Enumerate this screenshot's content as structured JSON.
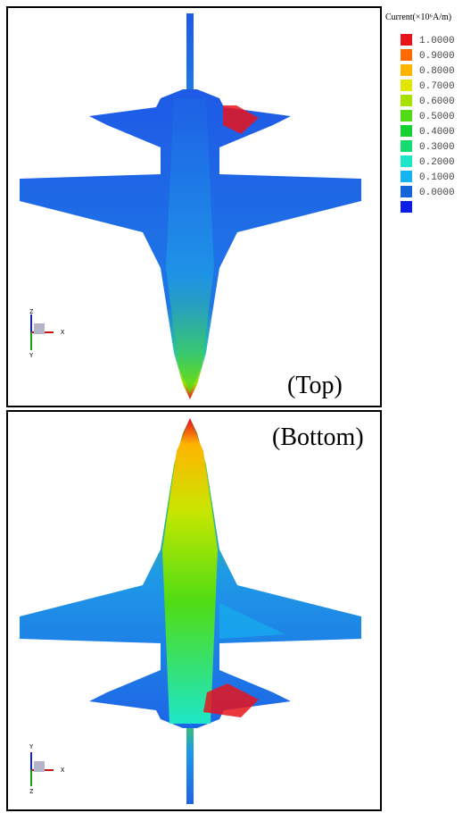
{
  "legend": {
    "title": "Current(×10⁶A/m)",
    "labels": [
      "1.0000",
      "0.9000",
      "0.8000",
      "0.7000",
      "0.6000",
      "0.5000",
      "0.4000",
      "0.3000",
      "0.2000",
      "0.1000",
      "0.0000"
    ],
    "colors": [
      "#e8141c",
      "#ff6a00",
      "#ffb400",
      "#e0e600",
      "#a8e000",
      "#50dc14",
      "#14d232",
      "#14dc6e",
      "#1ee6c8",
      "#14b4f0",
      "#1464dc",
      "#0a1ee6"
    ]
  },
  "panels": [
    {
      "label": "(Top)",
      "axes": [
        "Z",
        "X",
        "Y"
      ]
    },
    {
      "label": "(Bottom)",
      "axes": [
        "Y",
        "X",
        "Z"
      ]
    }
  ]
}
